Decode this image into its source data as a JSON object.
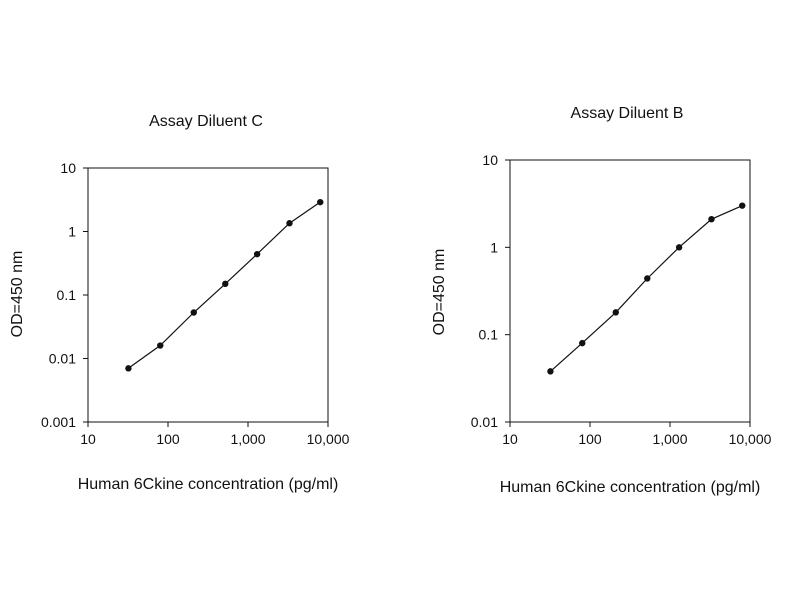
{
  "chart_data": [
    {
      "type": "line",
      "title": "Assay Diluent C",
      "xlabel": "Human 6Ckine concentration (pg/ml)",
      "ylabel": "OD=450 nm",
      "x_scale": "log",
      "y_scale": "log",
      "xlim": [
        10,
        10000
      ],
      "ylim": [
        0.001,
        10
      ],
      "x_ticks": [
        "10",
        "100",
        "1,000",
        "10,000"
      ],
      "y_ticks": [
        "0.001",
        "0.01",
        "0.1",
        "1",
        "10"
      ],
      "grid": false,
      "series": [
        {
          "x": [
            32,
            80,
            210,
            520,
            1300,
            3300,
            8000
          ],
          "y": [
            0.007,
            0.016,
            0.053,
            0.15,
            0.44,
            1.35,
            2.9
          ]
        }
      ]
    },
    {
      "type": "line",
      "title": "Assay Diluent B",
      "xlabel": "Human 6Ckine concentration (pg/ml)",
      "ylabel": "OD=450 nm",
      "x_scale": "log",
      "y_scale": "log",
      "xlim": [
        10,
        10000
      ],
      "ylim": [
        0.01,
        10
      ],
      "x_ticks": [
        "10",
        "100",
        "1,000",
        "10,000"
      ],
      "y_ticks": [
        "0.01",
        "0.1",
        "1",
        "10"
      ],
      "grid": false,
      "series": [
        {
          "x": [
            32,
            80,
            210,
            520,
            1300,
            3300,
            8000
          ],
          "y": [
            0.038,
            0.08,
            0.18,
            0.44,
            1.0,
            2.1,
            3.0
          ]
        }
      ]
    }
  ]
}
